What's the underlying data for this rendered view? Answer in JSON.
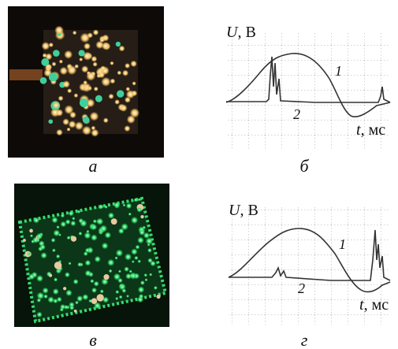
{
  "panels": [
    {
      "label": "а"
    },
    {
      "label": "б"
    },
    {
      "label": "в"
    },
    {
      "label": "г"
    }
  ],
  "plots": [
    {
      "y_symbol": "U",
      "y_unit": ", В",
      "x_symbol": "t",
      "x_unit": ", мс",
      "curve_labels": [
        "1",
        "2"
      ]
    },
    {
      "y_symbol": "U",
      "y_unit": ", В",
      "x_symbol": "t",
      "x_unit": ", мс",
      "curve_labels": [
        "1",
        "2"
      ]
    }
  ]
}
